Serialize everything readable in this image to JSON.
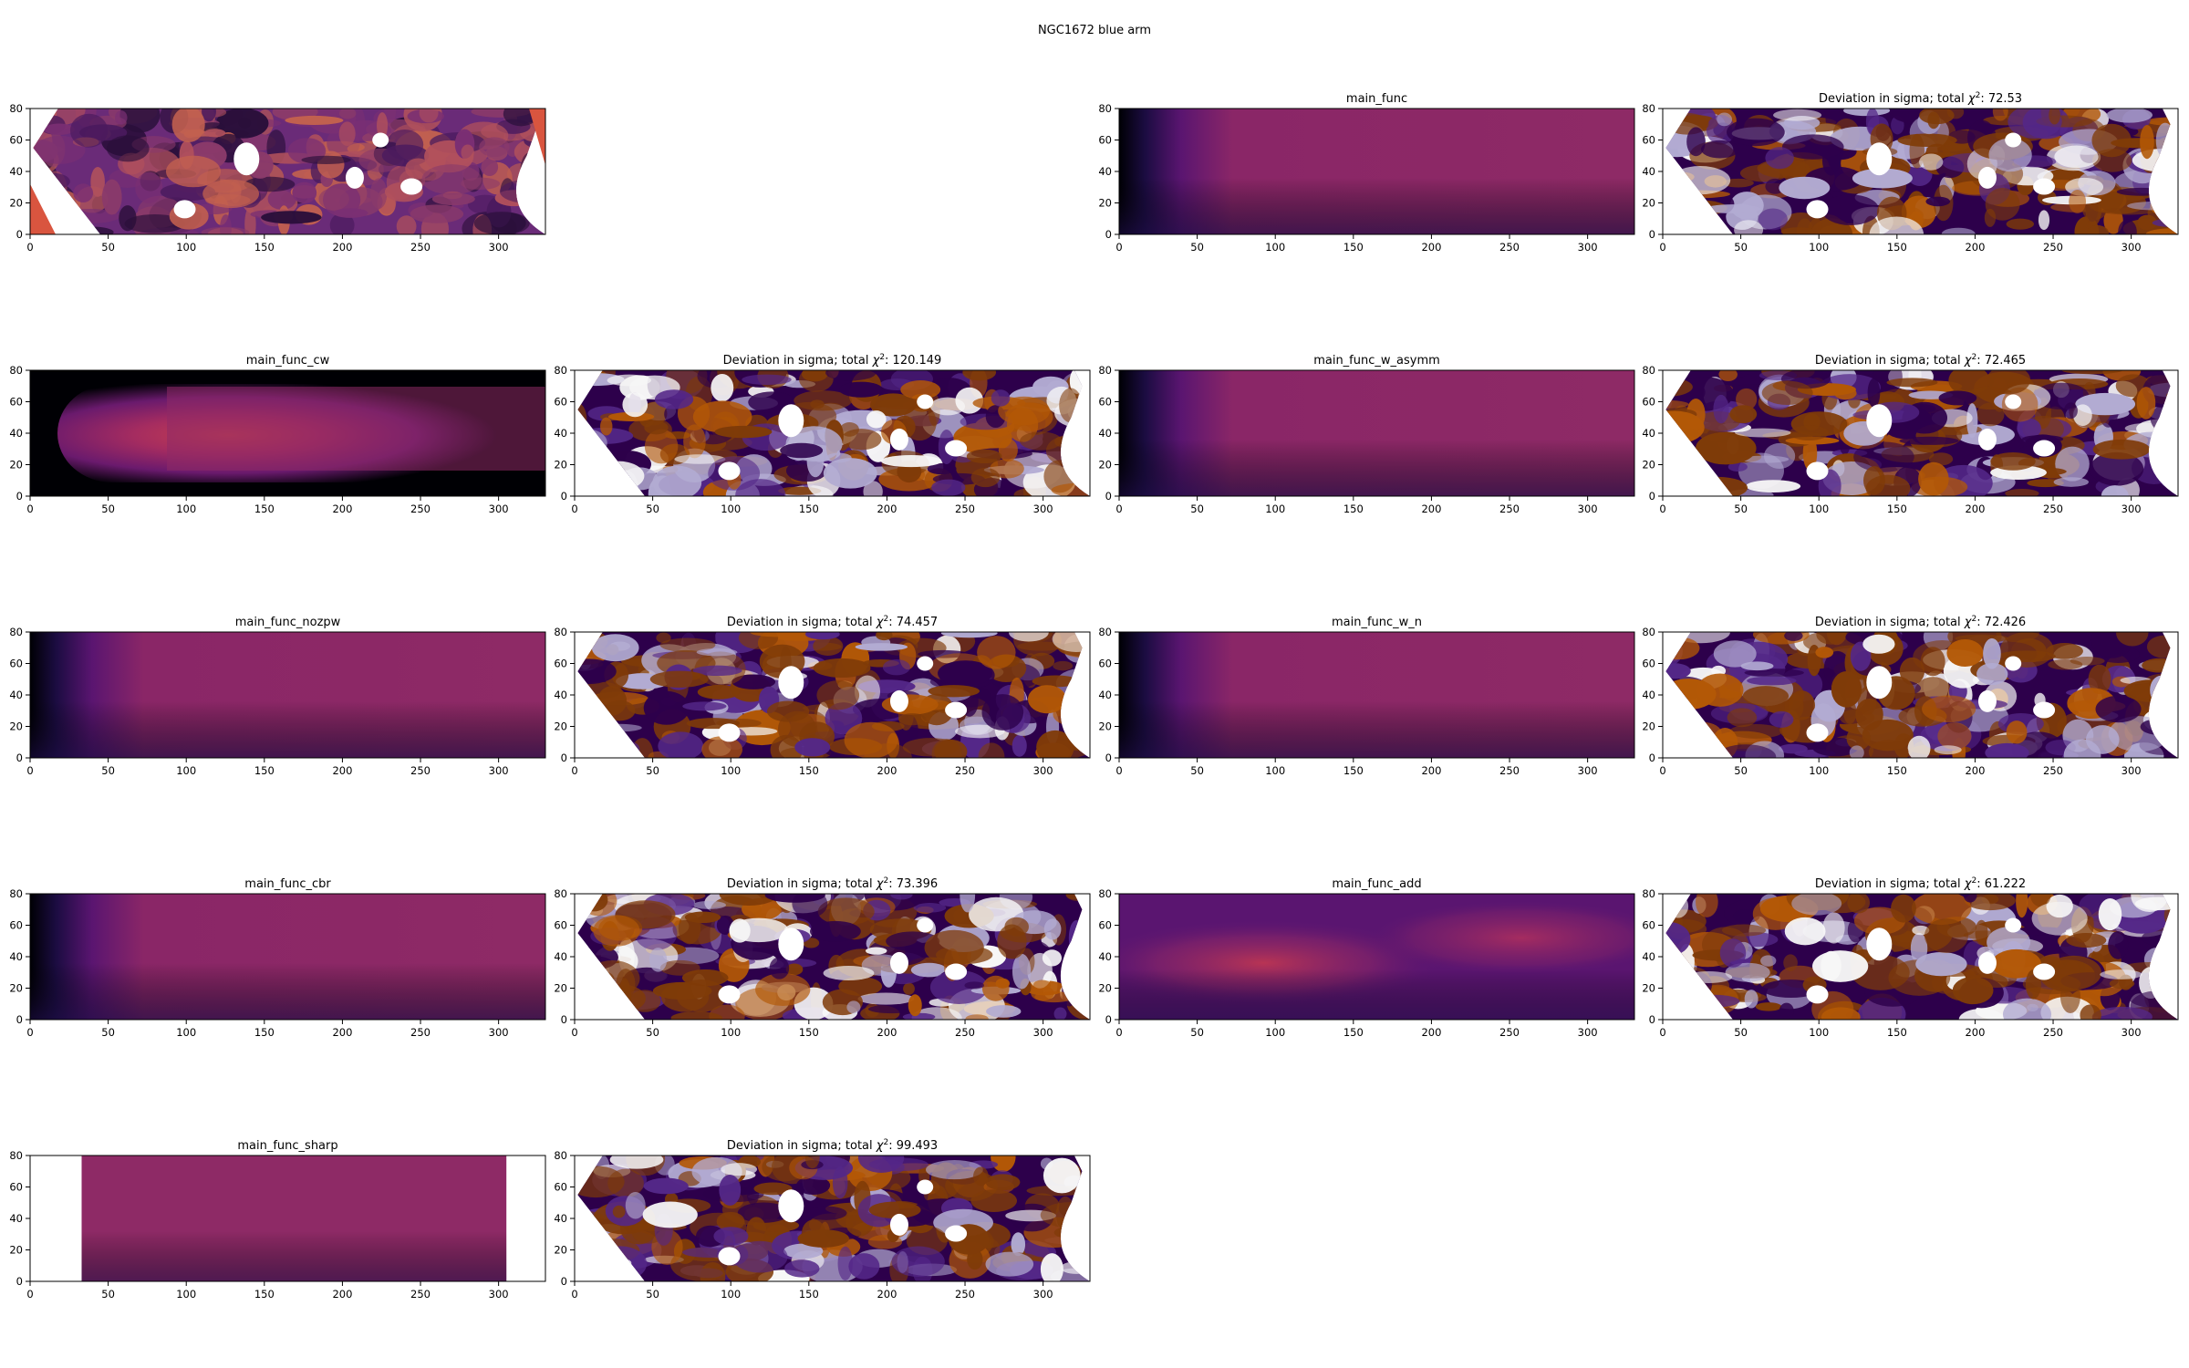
{
  "figure": {
    "suptitle": "NGC1672 blue arm"
  },
  "colors": {
    "model_ramp": [
      "#000004",
      "#1b0c41",
      "#4a0c6b",
      "#781c6d",
      "#a52c60",
      "#cf4446"
    ],
    "deviation_pos": "#7f3b08",
    "deviation_neg": "#2d004b",
    "deviation_mid": "#f7f7f7",
    "data_base": "#6a2b78"
  },
  "chart_data": [
    {
      "type": "heatmap",
      "kind": "data",
      "row": 0,
      "col": 0,
      "title": "",
      "xlim": [
        0,
        330
      ],
      "ylim": [
        0,
        80
      ],
      "xticks": [
        0,
        50,
        100,
        150,
        200,
        250,
        300
      ],
      "yticks": [
        0,
        20,
        40,
        60,
        80
      ]
    },
    {
      "type": "heatmap",
      "kind": "model",
      "row": 0,
      "col": 2,
      "title": "main_func",
      "xlim": [
        0,
        330
      ],
      "ylim": [
        0,
        80
      ],
      "xticks": [
        0,
        50,
        100,
        150,
        200,
        250,
        300
      ],
      "yticks": [
        0,
        20,
        40,
        60,
        80
      ]
    },
    {
      "type": "heatmap",
      "kind": "deviation",
      "row": 0,
      "col": 3,
      "title_prefix": "Deviation in sigma; total ",
      "title_chi": "χ",
      "title_sup": "2",
      "title_value": ": 72.53",
      "xlim": [
        0,
        330
      ],
      "ylim": [
        0,
        80
      ],
      "xticks": [
        0,
        50,
        100,
        150,
        200,
        250,
        300
      ],
      "yticks": [
        0,
        20,
        40,
        60,
        80
      ]
    },
    {
      "type": "heatmap",
      "kind": "model",
      "row": 1,
      "col": 0,
      "title": "main_func_cw",
      "xlim": [
        0,
        330
      ],
      "ylim": [
        0,
        80
      ],
      "xticks": [
        0,
        50,
        100,
        150,
        200,
        250,
        300
      ],
      "yticks": [
        0,
        20,
        40,
        60,
        80
      ]
    },
    {
      "type": "heatmap",
      "kind": "deviation",
      "row": 1,
      "col": 1,
      "title_prefix": "Deviation in sigma; total ",
      "title_chi": "χ",
      "title_sup": "2",
      "title_value": ": 120.149",
      "xlim": [
        0,
        330
      ],
      "ylim": [
        0,
        80
      ],
      "xticks": [
        0,
        50,
        100,
        150,
        200,
        250,
        300
      ],
      "yticks": [
        0,
        20,
        40,
        60,
        80
      ]
    },
    {
      "type": "heatmap",
      "kind": "model",
      "row": 1,
      "col": 2,
      "title": "main_func_w_asymm",
      "xlim": [
        0,
        330
      ],
      "ylim": [
        0,
        80
      ],
      "xticks": [
        0,
        50,
        100,
        150,
        200,
        250,
        300
      ],
      "yticks": [
        0,
        20,
        40,
        60,
        80
      ]
    },
    {
      "type": "heatmap",
      "kind": "deviation",
      "row": 1,
      "col": 3,
      "title_prefix": "Deviation in sigma; total ",
      "title_chi": "χ",
      "title_sup": "2",
      "title_value": ": 72.465",
      "xlim": [
        0,
        330
      ],
      "ylim": [
        0,
        80
      ],
      "xticks": [
        0,
        50,
        100,
        150,
        200,
        250,
        300
      ],
      "yticks": [
        0,
        20,
        40,
        60,
        80
      ]
    },
    {
      "type": "heatmap",
      "kind": "model",
      "row": 2,
      "col": 0,
      "title": "main_func_nozpw",
      "xlim": [
        0,
        330
      ],
      "ylim": [
        0,
        80
      ],
      "xticks": [
        0,
        50,
        100,
        150,
        200,
        250,
        300
      ],
      "yticks": [
        0,
        20,
        40,
        60,
        80
      ]
    },
    {
      "type": "heatmap",
      "kind": "deviation",
      "row": 2,
      "col": 1,
      "title_prefix": "Deviation in sigma; total ",
      "title_chi": "χ",
      "title_sup": "2",
      "title_value": ": 74.457",
      "xlim": [
        0,
        330
      ],
      "ylim": [
        0,
        80
      ],
      "xticks": [
        0,
        50,
        100,
        150,
        200,
        250,
        300
      ],
      "yticks": [
        0,
        20,
        40,
        60,
        80
      ]
    },
    {
      "type": "heatmap",
      "kind": "model",
      "row": 2,
      "col": 2,
      "title": "main_func_w_n",
      "xlim": [
        0,
        330
      ],
      "ylim": [
        0,
        80
      ],
      "xticks": [
        0,
        50,
        100,
        150,
        200,
        250,
        300
      ],
      "yticks": [
        0,
        20,
        40,
        60,
        80
      ]
    },
    {
      "type": "heatmap",
      "kind": "deviation",
      "row": 2,
      "col": 3,
      "title_prefix": "Deviation in sigma; total ",
      "title_chi": "χ",
      "title_sup": "2",
      "title_value": ": 72.426",
      "xlim": [
        0,
        330
      ],
      "ylim": [
        0,
        80
      ],
      "xticks": [
        0,
        50,
        100,
        150,
        200,
        250,
        300
      ],
      "yticks": [
        0,
        20,
        40,
        60,
        80
      ]
    },
    {
      "type": "heatmap",
      "kind": "model",
      "row": 3,
      "col": 0,
      "title": "main_func_cbr",
      "xlim": [
        0,
        330
      ],
      "ylim": [
        0,
        80
      ],
      "xticks": [
        0,
        50,
        100,
        150,
        200,
        250,
        300
      ],
      "yticks": [
        0,
        20,
        40,
        60,
        80
      ]
    },
    {
      "type": "heatmap",
      "kind": "deviation",
      "row": 3,
      "col": 1,
      "title_prefix": "Deviation in sigma; total ",
      "title_chi": "χ",
      "title_sup": "2",
      "title_value": ": 73.396",
      "xlim": [
        0,
        330
      ],
      "ylim": [
        0,
        80
      ],
      "xticks": [
        0,
        50,
        100,
        150,
        200,
        250,
        300
      ],
      "yticks": [
        0,
        20,
        40,
        60,
        80
      ]
    },
    {
      "type": "heatmap",
      "kind": "model",
      "row": 3,
      "col": 2,
      "title": "main_func_add",
      "xlim": [
        0,
        330
      ],
      "ylim": [
        0,
        80
      ],
      "xticks": [
        0,
        50,
        100,
        150,
        200,
        250,
        300
      ],
      "yticks": [
        0,
        20,
        40,
        60,
        80
      ]
    },
    {
      "type": "heatmap",
      "kind": "deviation",
      "row": 3,
      "col": 3,
      "title_prefix": "Deviation in sigma; total ",
      "title_chi": "χ",
      "title_sup": "2",
      "title_value": ": 61.222",
      "xlim": [
        0,
        330
      ],
      "ylim": [
        0,
        80
      ],
      "xticks": [
        0,
        50,
        100,
        150,
        200,
        250,
        300
      ],
      "yticks": [
        0,
        20,
        40,
        60,
        80
      ]
    },
    {
      "type": "heatmap",
      "kind": "model",
      "row": 4,
      "col": 0,
      "title": "main_func_sharp",
      "xlim": [
        0,
        330
      ],
      "ylim": [
        0,
        80
      ],
      "xticks": [
        0,
        50,
        100,
        150,
        200,
        250,
        300
      ],
      "yticks": [
        0,
        20,
        40,
        60,
        80
      ]
    },
    {
      "type": "heatmap",
      "kind": "deviation",
      "row": 4,
      "col": 1,
      "title_prefix": "Deviation in sigma; total ",
      "title_chi": "χ",
      "title_sup": "2",
      "title_value": ": 99.493",
      "xlim": [
        0,
        330
      ],
      "ylim": [
        0,
        80
      ],
      "xticks": [
        0,
        50,
        100,
        150,
        200,
        250,
        300
      ],
      "yticks": [
        0,
        20,
        40,
        60,
        80
      ]
    }
  ]
}
